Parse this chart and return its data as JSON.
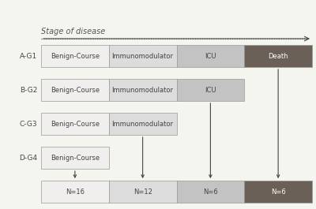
{
  "title": "Stage of disease",
  "background_color": "#f5f5f0",
  "rows": [
    {
      "label": "A-G1",
      "segments": [
        "Benign-Course",
        "Immunomodulator",
        "ICU",
        "Death"
      ]
    },
    {
      "label": "B-G2",
      "segments": [
        "Benign-Course",
        "Immunomodulator",
        "ICU"
      ]
    },
    {
      "label": "C-G3",
      "segments": [
        "Benign-Course",
        "Immunomodulator"
      ]
    },
    {
      "label": "D-G4",
      "segments": [
        "Benign-Course"
      ]
    }
  ],
  "bottom_labels": [
    "N=16",
    "N=12",
    "N=6",
    "N=6"
  ],
  "segment_colors": {
    "Benign-Course": "#f0efee",
    "Immunomodulator": "#dcdcdc",
    "ICU": "#c3c3c3",
    "Death": "#6b6057"
  },
  "bottom_colors": [
    "#f0efee",
    "#dcdcdc",
    "#c3c3c3",
    "#6b6057"
  ],
  "segment_edge_color": "#999999",
  "label_color": "#444444",
  "arrow_color": "#444444",
  "title_color": "#555555",
  "label_fontsize": 6.5,
  "segment_fontsize": 6.0,
  "title_fontsize": 7.0
}
